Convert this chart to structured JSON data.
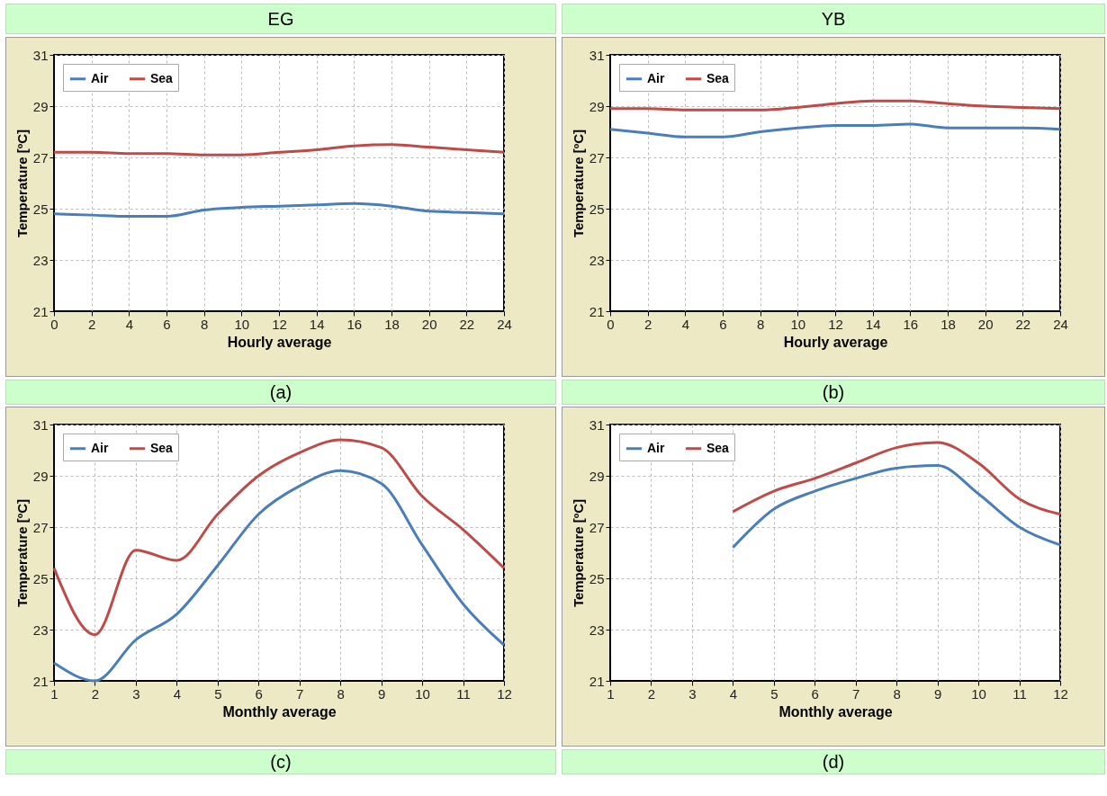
{
  "chart_data": [
    {
      "type": "line",
      "title": "EG",
      "xlabel": "Hourly average",
      "ylabel": "Temperature [ºC]",
      "x": [
        0,
        2,
        4,
        6,
        8,
        10,
        12,
        14,
        16,
        18,
        20,
        22,
        24
      ],
      "xlim": [
        0,
        24
      ],
      "xticks": [
        0,
        2,
        4,
        6,
        8,
        10,
        12,
        14,
        16,
        18,
        20,
        22,
        24
      ],
      "ylim": [
        21,
        31
      ],
      "yticks": [
        21,
        23,
        25,
        27,
        29,
        31
      ],
      "grid": true,
      "legend": "top left",
      "line_style": "solid",
      "annotations": [
        "(a)"
      ],
      "series": [
        {
          "name": "Air",
          "color": "#4a7ebb",
          "values": [
            24.8,
            24.75,
            24.7,
            24.7,
            24.95,
            25.05,
            25.1,
            25.15,
            25.2,
            25.1,
            24.9,
            24.85,
            24.8
          ]
        },
        {
          "name": "Sea",
          "color": "#be4b48",
          "values": [
            27.2,
            27.2,
            27.15,
            27.15,
            27.1,
            27.1,
            27.2,
            27.3,
            27.45,
            27.5,
            27.4,
            27.3,
            27.2
          ]
        }
      ]
    },
    {
      "type": "line",
      "title": "YB",
      "xlabel": "Hourly average",
      "ylabel": "Temperature [ºC]",
      "x": [
        0,
        2,
        4,
        6,
        8,
        10,
        12,
        14,
        16,
        18,
        20,
        22,
        24
      ],
      "xlim": [
        0,
        24
      ],
      "xticks": [
        0,
        2,
        4,
        6,
        8,
        10,
        12,
        14,
        16,
        18,
        20,
        22,
        24
      ],
      "ylim": [
        21,
        31
      ],
      "yticks": [
        21,
        23,
        25,
        27,
        29,
        31
      ],
      "grid": true,
      "legend": "top left",
      "line_style": "solid",
      "annotations": [
        "(b)"
      ],
      "series": [
        {
          "name": "Air",
          "color": "#4a7ebb",
          "values": [
            28.1,
            27.95,
            27.8,
            27.8,
            28.0,
            28.15,
            28.25,
            28.25,
            28.3,
            28.15,
            28.15,
            28.15,
            28.1
          ]
        },
        {
          "name": "Sea",
          "color": "#be4b48",
          "values": [
            28.9,
            28.9,
            28.85,
            28.85,
            28.85,
            28.95,
            29.1,
            29.2,
            29.2,
            29.1,
            29.0,
            28.95,
            28.9
          ]
        }
      ]
    },
    {
      "type": "line",
      "xlabel": "Monthly average",
      "ylabel": "Temperature [ºC]",
      "x": [
        1,
        2,
        3,
        4,
        5,
        6,
        7,
        8,
        9,
        10,
        11,
        12
      ],
      "xlim": [
        1,
        12
      ],
      "xticks": [
        1,
        2,
        3,
        4,
        5,
        6,
        7,
        8,
        9,
        10,
        11,
        12
      ],
      "ylim": [
        21,
        31
      ],
      "yticks": [
        21,
        23,
        25,
        27,
        29,
        31
      ],
      "grid": true,
      "legend": "top left",
      "line_style": "solid",
      "annotations": [
        "(c)"
      ],
      "series": [
        {
          "name": "Air",
          "color": "#4a7ebb",
          "values": [
            21.7,
            21.0,
            22.6,
            23.6,
            25.5,
            27.5,
            28.6,
            29.2,
            28.7,
            26.3,
            24.0,
            22.4
          ]
        },
        {
          "name": "Sea",
          "color": "#be4b48",
          "values": [
            25.4,
            22.8,
            26.1,
            25.7,
            27.5,
            29.0,
            29.9,
            30.4,
            30.1,
            28.2,
            26.9,
            25.4
          ]
        }
      ]
    },
    {
      "type": "line",
      "xlabel": "Monthly average",
      "ylabel": "Temperature [ºC]",
      "x": [
        4,
        5,
        6,
        7,
        8,
        9,
        10,
        11,
        12
      ],
      "xlim": [
        1,
        12
      ],
      "xticks": [
        1,
        2,
        3,
        4,
        5,
        6,
        7,
        8,
        9,
        10,
        11,
        12
      ],
      "ylim": [
        21,
        31
      ],
      "yticks": [
        21,
        23,
        25,
        27,
        29,
        31
      ],
      "grid": true,
      "legend": "top left",
      "line_style": "solid",
      "annotations": [
        "(d)"
      ],
      "series": [
        {
          "name": "Air",
          "color": "#4a7ebb",
          "values": [
            26.2,
            27.7,
            28.4,
            28.9,
            29.3,
            29.4,
            28.3,
            27.0,
            26.3
          ]
        },
        {
          "name": "Sea",
          "color": "#be4b48",
          "values": [
            27.6,
            28.4,
            28.9,
            29.5,
            30.1,
            30.3,
            29.5,
            28.1,
            27.5
          ]
        }
      ]
    }
  ]
}
